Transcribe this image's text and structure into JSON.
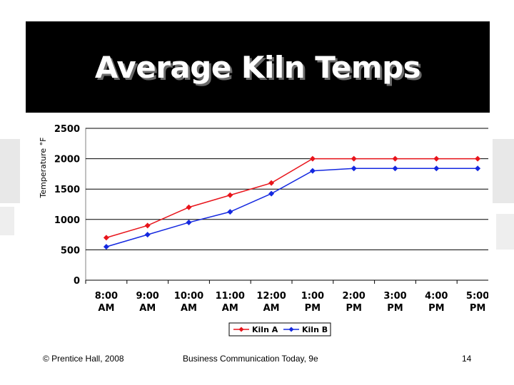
{
  "slide": {
    "title": "Average Kiln Temps",
    "footer_left": "© Prentice Hall, 2008",
    "footer_center": "Business Communication Today, 9e",
    "page_number": "14"
  },
  "chart_data": {
    "type": "line",
    "title": "Average Kiln Temps",
    "xlabel": "",
    "ylabel": "Temperature °F",
    "categories": [
      "8:00 AM",
      "9:00 AM",
      "10:00 AM",
      "11:00 AM",
      "12:00 AM",
      "1:00 PM",
      "2:00 PM",
      "3:00 PM",
      "4:00 PM",
      "5:00 PM"
    ],
    "category_lines": [
      [
        "8:00",
        "AM"
      ],
      [
        "9:00",
        "AM"
      ],
      [
        "10:00",
        "AM"
      ],
      [
        "11:00",
        "AM"
      ],
      [
        "12:00",
        "AM"
      ],
      [
        "1:00",
        "PM"
      ],
      [
        "2:00",
        "PM"
      ],
      [
        "3:00",
        "PM"
      ],
      [
        "4:00",
        "PM"
      ],
      [
        "5:00",
        "PM"
      ]
    ],
    "ylim": [
      0,
      2500
    ],
    "yticks": [
      0,
      500,
      1000,
      1500,
      2000,
      2500
    ],
    "grid": true,
    "legend": "bottom",
    "series": [
      {
        "name": "Kiln A",
        "color": "#e8141b",
        "values": [
          700,
          900,
          1200,
          1400,
          1600,
          2000,
          2000,
          2000,
          2000,
          2000
        ]
      },
      {
        "name": "Kiln B",
        "color": "#1428e0",
        "values": [
          550,
          750,
          950,
          1125,
          1425,
          1800,
          1840,
          1840,
          1840,
          1840
        ]
      }
    ]
  }
}
